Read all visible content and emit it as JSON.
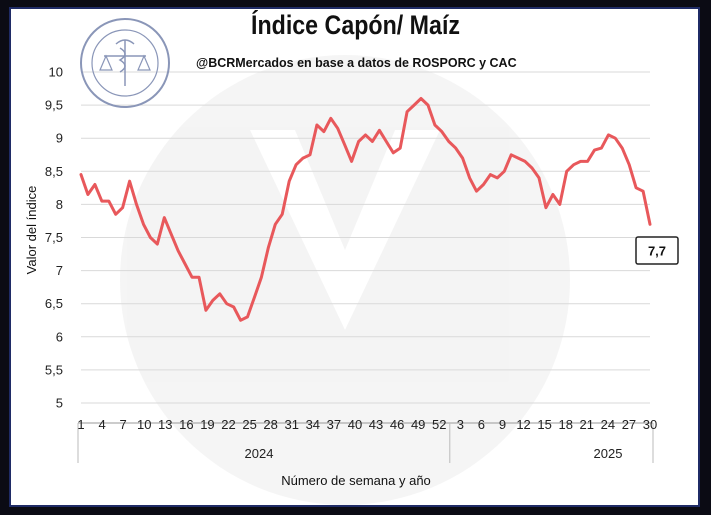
{
  "chart_data": {
    "type": "line",
    "title": "Índice Capón/ Maíz",
    "subtitle": "@BCRMercados  en base a datos de ROSPORC y CAC",
    "ylabel": "Valor del índice",
    "xlabel": "Número de semana  y año",
    "ylim": [
      5,
      10
    ],
    "yticks": [
      "5",
      "5,5",
      "6",
      "6,5",
      "7",
      "7,5",
      "8",
      "8,5",
      "9",
      "9,5",
      "10"
    ],
    "xticks": [
      "1",
      "4",
      "7",
      "10",
      "13",
      "16",
      "19",
      "22",
      "25",
      "28",
      "31",
      "34",
      "37",
      "40",
      "43",
      "46",
      "49",
      "52",
      "3",
      "6",
      "9",
      "12",
      "15",
      "18",
      "21",
      "24",
      "27",
      "30"
    ],
    "years": [
      "2024",
      "2025"
    ],
    "grid": "horizontal",
    "line_color": "#e8585b",
    "end_label": "7,7",
    "series": [
      {
        "values": [
          8.45,
          8.15,
          8.3,
          8.05,
          8.05,
          7.85,
          7.95,
          8.35,
          8.0,
          7.7,
          7.5,
          7.4,
          7.8,
          7.55,
          7.3,
          7.1,
          6.9,
          6.9,
          6.4,
          6.55,
          6.65,
          6.5,
          6.45,
          6.25,
          6.3,
          6.6,
          6.9,
          7.35,
          7.7,
          7.85,
          8.35,
          8.6,
          8.7,
          8.75,
          9.2,
          9.1,
          9.3,
          9.15,
          8.9,
          8.65,
          8.95,
          9.05,
          8.95,
          9.12,
          8.95,
          8.78,
          8.85,
          9.4,
          9.5,
          9.6,
          9.5,
          9.2,
          9.1,
          8.95,
          8.85,
          8.7,
          8.4,
          8.2,
          8.3,
          8.45,
          8.4,
          8.5,
          8.75,
          8.7,
          8.65,
          8.55,
          8.4,
          7.95,
          8.15,
          8.0,
          8.5,
          8.6,
          8.65,
          8.65,
          8.82,
          8.85,
          9.05,
          9.0,
          8.85,
          8.6,
          8.25,
          8.2,
          7.7
        ]
      }
    ]
  }
}
